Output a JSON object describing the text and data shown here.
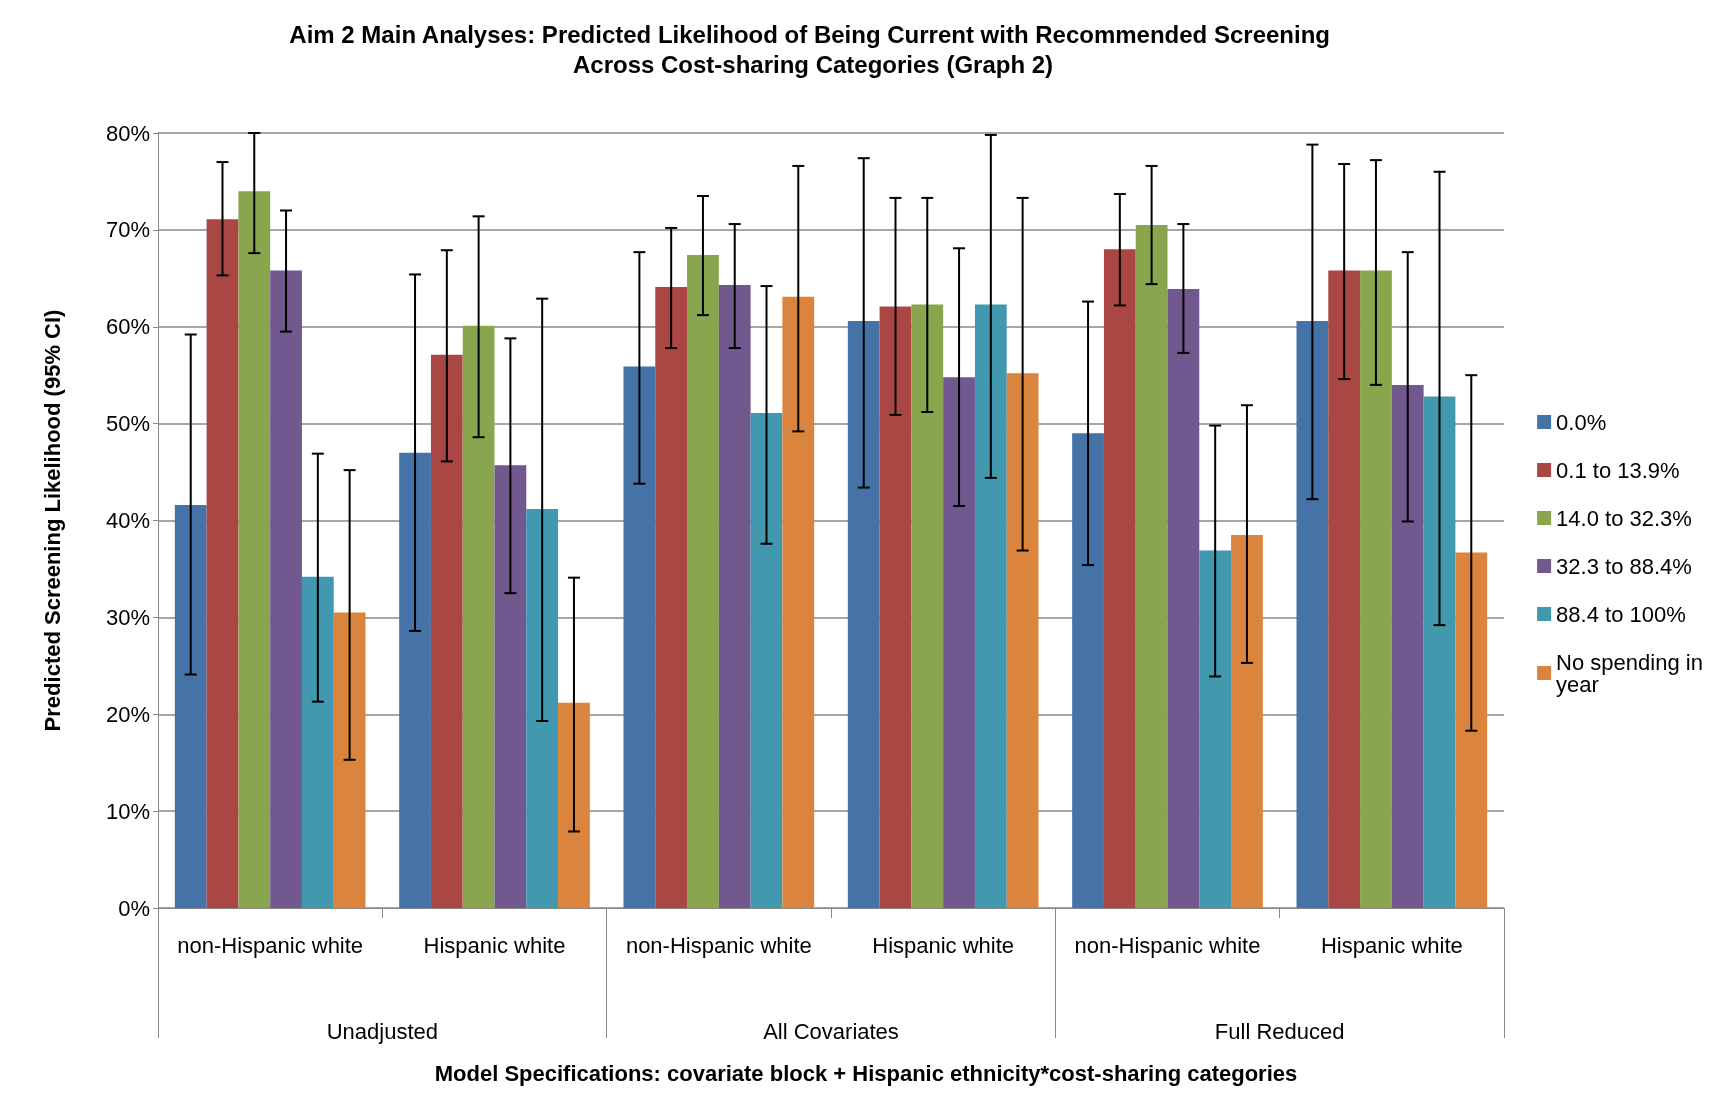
{
  "chart_data": {
    "type": "bar",
    "title": "Aim 2 Main Analyses: Predicted Likelihood of Being Current with Recommended Screening Across Cost-sharing Categories (Graph 2)",
    "xlabel": "Model Specifications: covariate block + Hispanic ethnicity*cost-sharing categories",
    "ylabel": "Predicted Screening Likelihood (95% CI)",
    "categories": [
      "non-Hispanic white",
      "Hispanic white",
      "non-Hispanic white",
      "Hispanic white",
      "non-Hispanic white",
      "Hispanic white"
    ],
    "annotations": [
      "Unadjusted",
      "All Covariates",
      "Full Reduced"
    ],
    "ylim": [
      0,
      80
    ],
    "yticks": [
      {
        "value": 0,
        "label": "0%"
      },
      {
        "value": 10,
        "label": "10%"
      },
      {
        "value": 20,
        "label": "20%"
      },
      {
        "value": 30,
        "label": "30%"
      },
      {
        "value": 40,
        "label": "40%"
      },
      {
        "value": 50,
        "label": "50%"
      },
      {
        "value": 60,
        "label": "60%"
      },
      {
        "value": 70,
        "label": "70%"
      },
      {
        "value": 80,
        "label": "80%"
      }
    ],
    "grid": "y",
    "legend": "right",
    "series": [
      {
        "name": "0.0%",
        "color": "#4572a7",
        "values": [
          41.6,
          47.0,
          55.9,
          60.6,
          49.0,
          60.6
        ],
        "errors": [
          [
            24.1,
            59.2
          ],
          [
            28.6,
            65.4
          ],
          [
            43.8,
            67.7
          ],
          [
            43.4,
            77.4
          ],
          [
            35.4,
            62.6
          ],
          [
            42.2,
            78.8
          ]
        ]
      },
      {
        "name": "0.1 to 13.9%",
        "color": "#aa4643",
        "values": [
          71.1,
          57.1,
          64.1,
          62.1,
          68.0,
          65.8
        ],
        "errors": [
          [
            65.3,
            77.0
          ],
          [
            46.1,
            67.9
          ],
          [
            57.8,
            70.2
          ],
          [
            50.9,
            73.3
          ],
          [
            62.2,
            73.7
          ],
          [
            54.6,
            76.8
          ]
        ]
      },
      {
        "name": "14.0 to 32.3%",
        "color": "#89a54e",
        "values": [
          74.0,
          60.1,
          67.4,
          62.3,
          70.5,
          65.8
        ],
        "errors": [
          [
            67.6,
            80.0
          ],
          [
            48.6,
            71.4
          ],
          [
            61.2,
            73.5
          ],
          [
            51.2,
            73.3
          ],
          [
            64.4,
            76.6
          ],
          [
            54.0,
            77.2
          ]
        ]
      },
      {
        "name": "32.3 to 88.4%",
        "color": "#71588f",
        "values": [
          65.8,
          45.7,
          64.3,
          54.8,
          63.9,
          54.0
        ],
        "errors": [
          [
            59.5,
            72.0
          ],
          [
            32.5,
            58.8
          ],
          [
            57.8,
            70.6
          ],
          [
            41.5,
            68.1
          ],
          [
            57.3,
            70.6
          ],
          [
            39.9,
            67.7
          ]
        ]
      },
      {
        "name": "88.4 to 100%",
        "color": "#4198af",
        "values": [
          34.2,
          41.2,
          51.1,
          62.3,
          36.9,
          52.8
        ],
        "errors": [
          [
            21.3,
            46.9
          ],
          [
            19.3,
            62.9
          ],
          [
            37.6,
            64.2
          ],
          [
            44.4,
            79.8
          ],
          [
            23.9,
            49.8
          ],
          [
            29.2,
            76.0
          ]
        ]
      },
      {
        "name": "No spending in year",
        "color": "#db843d",
        "values": [
          30.5,
          21.2,
          63.1,
          55.2,
          38.5,
          36.7
        ],
        "errors": [
          [
            15.3,
            45.2
          ],
          [
            7.9,
            34.1
          ],
          [
            49.2,
            76.6
          ],
          [
            36.9,
            73.3
          ],
          [
            25.3,
            51.9
          ],
          [
            18.3,
            55.0
          ]
        ]
      }
    ]
  }
}
